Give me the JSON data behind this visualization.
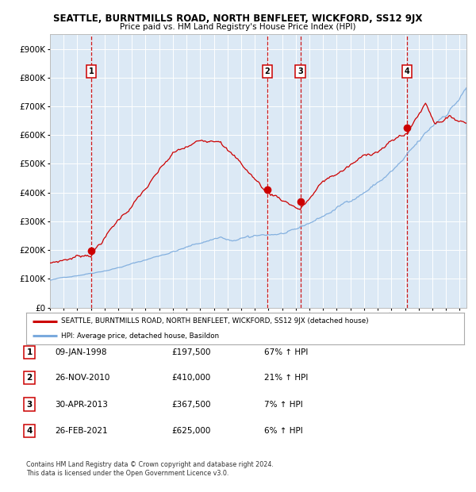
{
  "title": "SEATTLE, BURNTMILLS ROAD, NORTH BENFLEET, WICKFORD, SS12 9JX",
  "subtitle": "Price paid vs. HM Land Registry's House Price Index (HPI)",
  "legend_line1": "SEATTLE, BURNTMILLS ROAD, NORTH BENFLEET, WICKFORD, SS12 9JX (detached house)",
  "legend_line2": "HPI: Average price, detached house, Basildon",
  "footer1": "Contains HM Land Registry data © Crown copyright and database right 2024.",
  "footer2": "This data is licensed under the Open Government Licence v3.0.",
  "transactions": [
    {
      "num": 1,
      "date": "09-JAN-1998",
      "price": 197500,
      "pct": "67%",
      "dir": "↑",
      "year_x": 1998.03
    },
    {
      "num": 2,
      "date": "26-NOV-2010",
      "price": 410000,
      "pct": "21%",
      "dir": "↑",
      "year_x": 2010.9
    },
    {
      "num": 3,
      "date": "30-APR-2013",
      "price": 367500,
      "pct": "7%",
      "dir": "↑",
      "year_x": 2013.33
    },
    {
      "num": 4,
      "date": "26-FEB-2021",
      "price": 625000,
      "pct": "6%",
      "dir": "↑",
      "year_x": 2021.15
    }
  ],
  "plot_bg_color": "#dce9f5",
  "red_line_color": "#cc0000",
  "blue_line_color": "#7aaadd",
  "dashed_line_color": "#cc0000",
  "grid_color": "#ffffff",
  "ylim": [
    0,
    950000
  ],
  "xlim_start": 1995.0,
  "xlim_end": 2025.5,
  "table_entries": [
    [
      "1",
      "09-JAN-1998",
      "£197,500",
      "67% ↑ HPI"
    ],
    [
      "2",
      "26-NOV-2010",
      "£410,000",
      "21% ↑ HPI"
    ],
    [
      "3",
      "30-APR-2013",
      "£367,500",
      "7% ↑ HPI"
    ],
    [
      "4",
      "26-FEB-2021",
      "£625,000",
      "6% ↑ HPI"
    ]
  ]
}
